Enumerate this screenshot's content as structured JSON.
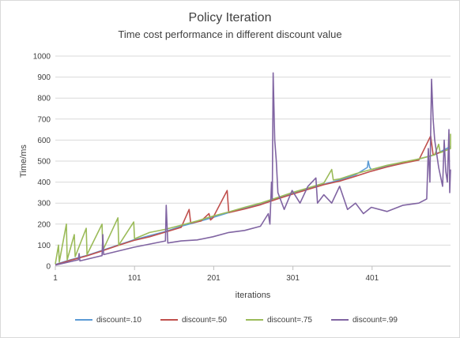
{
  "chart_data": {
    "type": "line",
    "title": "Policy Iteration",
    "subtitle": "Time cost performance in different discount value",
    "xlabel": "iterations",
    "ylabel": "Time/ms",
    "xlim": [
      1,
      500
    ],
    "ylim": [
      0,
      1000
    ],
    "x_ticks": [
      1,
      101,
      201,
      301,
      401
    ],
    "x_tick_labels": [
      "1",
      "101",
      "201",
      "301",
      "401"
    ],
    "y_ticks": [
      0,
      100,
      200,
      300,
      400,
      500,
      600,
      700,
      800,
      900,
      1000
    ],
    "y_tick_labels": [
      "0",
      "100",
      "200",
      "300",
      "400",
      "500",
      "600",
      "700",
      "800",
      "900",
      "1000"
    ],
    "grid": true,
    "legend_position": "bottom",
    "series": [
      {
        "name": "discount=.10",
        "color": "#5b9bd5",
        "points": [
          [
            1,
            8
          ],
          [
            20,
            30
          ],
          [
            40,
            50
          ],
          [
            60,
            75
          ],
          [
            80,
            100
          ],
          [
            100,
            125
          ],
          [
            120,
            145
          ],
          [
            140,
            165
          ],
          [
            160,
            190
          ],
          [
            180,
            210
          ],
          [
            200,
            232
          ],
          [
            220,
            255
          ],
          [
            240,
            275
          ],
          [
            260,
            295
          ],
          [
            280,
            320
          ],
          [
            300,
            345
          ],
          [
            320,
            368
          ],
          [
            340,
            390
          ],
          [
            360,
            410
          ],
          [
            380,
            435
          ],
          [
            395,
            470
          ],
          [
            396,
            500
          ],
          [
            398,
            470
          ],
          [
            400,
            460
          ],
          [
            420,
            475
          ],
          [
            440,
            490
          ],
          [
            460,
            510
          ],
          [
            480,
            530
          ],
          [
            490,
            550
          ],
          [
            500,
            570
          ]
        ]
      },
      {
        "name": "discount=.50",
        "color": "#c0504d",
        "points": [
          [
            1,
            6
          ],
          [
            20,
            28
          ],
          [
            40,
            48
          ],
          [
            60,
            72
          ],
          [
            80,
            98
          ],
          [
            100,
            122
          ],
          [
            120,
            140
          ],
          [
            140,
            162
          ],
          [
            160,
            185
          ],
          [
            170,
            270
          ],
          [
            172,
            205
          ],
          [
            185,
            215
          ],
          [
            195,
            250
          ],
          [
            197,
            220
          ],
          [
            200,
            230
          ],
          [
            218,
            360
          ],
          [
            220,
            255
          ],
          [
            240,
            272
          ],
          [
            260,
            292
          ],
          [
            280,
            318
          ],
          [
            300,
            342
          ],
          [
            320,
            365
          ],
          [
            340,
            388
          ],
          [
            360,
            405
          ],
          [
            380,
            428
          ],
          [
            400,
            452
          ],
          [
            420,
            472
          ],
          [
            440,
            490
          ],
          [
            460,
            505
          ],
          [
            475,
            620
          ],
          [
            478,
            530
          ],
          [
            490,
            545
          ],
          [
            500,
            560
          ]
        ]
      },
      {
        "name": "discount=.75",
        "color": "#9bbb59",
        "points": [
          [
            1,
            10
          ],
          [
            5,
            100
          ],
          [
            6,
            20
          ],
          [
            15,
            200
          ],
          [
            16,
            30
          ],
          [
            25,
            150
          ],
          [
            26,
            45
          ],
          [
            40,
            180
          ],
          [
            41,
            55
          ],
          [
            60,
            200
          ],
          [
            61,
            75
          ],
          [
            80,
            230
          ],
          [
            81,
            100
          ],
          [
            100,
            210
          ],
          [
            101,
            130
          ],
          [
            120,
            160
          ],
          [
            140,
            175
          ],
          [
            160,
            195
          ],
          [
            180,
            215
          ],
          [
            200,
            238
          ],
          [
            220,
            258
          ],
          [
            240,
            280
          ],
          [
            260,
            300
          ],
          [
            280,
            325
          ],
          [
            300,
            350
          ],
          [
            320,
            372
          ],
          [
            340,
            395
          ],
          [
            350,
            460
          ],
          [
            352,
            410
          ],
          [
            360,
            415
          ],
          [
            380,
            440
          ],
          [
            400,
            460
          ],
          [
            420,
            480
          ],
          [
            440,
            495
          ],
          [
            460,
            510
          ],
          [
            480,
            530
          ],
          [
            485,
            580
          ],
          [
            487,
            540
          ],
          [
            500,
            560
          ],
          [
            500,
            630
          ]
        ]
      },
      {
        "name": "discount=.99",
        "color": "#8064a2",
        "points": [
          [
            1,
            5
          ],
          [
            30,
            30
          ],
          [
            31,
            60
          ],
          [
            32,
            25
          ],
          [
            60,
            50
          ],
          [
            61,
            150
          ],
          [
            62,
            55
          ],
          [
            100,
            90
          ],
          [
            140,
            120
          ],
          [
            141,
            290
          ],
          [
            143,
            110
          ],
          [
            160,
            120
          ],
          [
            180,
            125
          ],
          [
            200,
            140
          ],
          [
            220,
            160
          ],
          [
            240,
            170
          ],
          [
            260,
            190
          ],
          [
            270,
            250
          ],
          [
            272,
            200
          ],
          [
            274,
            400
          ],
          [
            275,
            320
          ],
          [
            276,
            920
          ],
          [
            278,
            600
          ],
          [
            280,
            500
          ],
          [
            282,
            350
          ],
          [
            290,
            270
          ],
          [
            300,
            360
          ],
          [
            310,
            300
          ],
          [
            320,
            380
          ],
          [
            330,
            420
          ],
          [
            332,
            300
          ],
          [
            340,
            340
          ],
          [
            350,
            300
          ],
          [
            360,
            380
          ],
          [
            370,
            270
          ],
          [
            380,
            300
          ],
          [
            390,
            250
          ],
          [
            400,
            280
          ],
          [
            420,
            260
          ],
          [
            440,
            290
          ],
          [
            460,
            300
          ],
          [
            470,
            320
          ],
          [
            472,
            560
          ],
          [
            474,
            400
          ],
          [
            476,
            890
          ],
          [
            478,
            700
          ],
          [
            480,
            600
          ],
          [
            485,
            470
          ],
          [
            490,
            380
          ],
          [
            492,
            600
          ],
          [
            494,
            450
          ],
          [
            496,
            400
          ],
          [
            498,
            650
          ],
          [
            499,
            350
          ],
          [
            500,
            460
          ]
        ]
      }
    ]
  }
}
